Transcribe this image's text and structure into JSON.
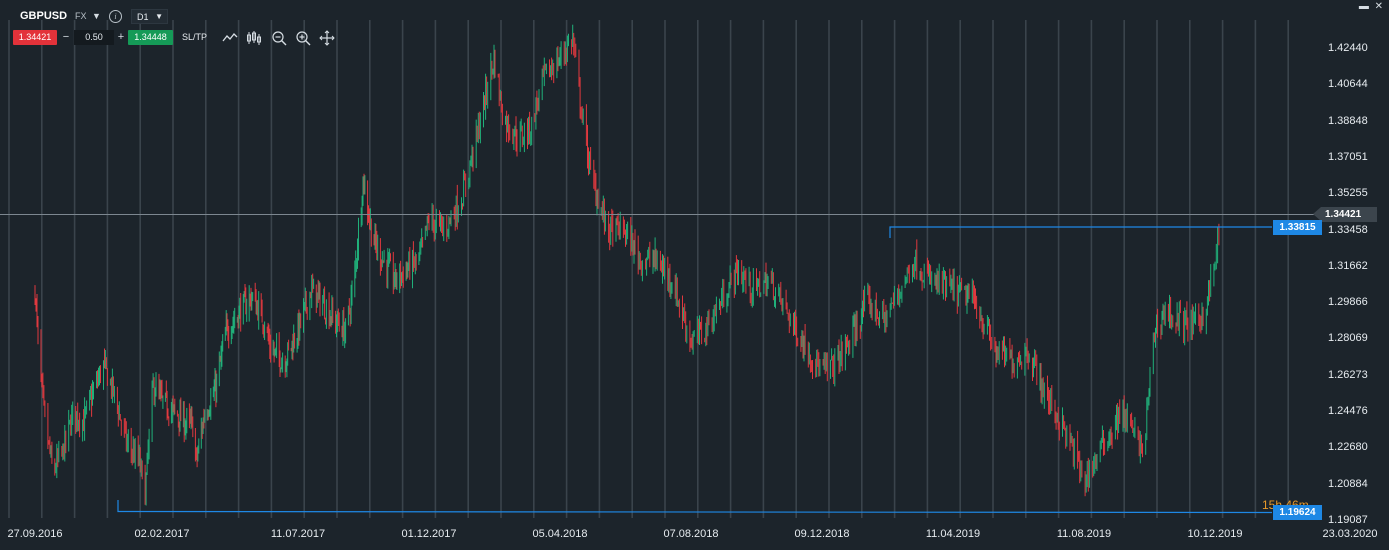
{
  "toolbar": {
    "symbol": "GBPUSD",
    "market": "FX",
    "timeframe": "D1",
    "sell_price": "1.34421",
    "lot_size": "0.50",
    "buy_price": "1.34448",
    "sltp_label": "SL/TP",
    "minus_label": "−",
    "plus_label": "+",
    "icons": [
      "line-chart-icon",
      "candles-icon",
      "zoom-out-icon",
      "zoom-in-icon",
      "crosshair-icon"
    ]
  },
  "window": {
    "icons": [
      "maximize-icon",
      "close-icon"
    ]
  },
  "colors": {
    "background": "#1c242b",
    "grid": "#3a444c",
    "up_candle": "#20b07a",
    "down_candle": "#e0393f",
    "level_line": "#1e88e5",
    "current_line": "#7d8790",
    "countdown": "#e89a2b"
  },
  "chart_data": {
    "type": "candlestick",
    "symbol": "GBPUSD",
    "timeframe": "D1",
    "x_tick_labels": [
      "27.09.2016",
      "02.02.2017",
      "11.07.2017",
      "01.12.2017",
      "05.04.2018",
      "07.08.2018",
      "09.12.2018",
      "11.04.2019",
      "11.08.2019",
      "10.12.2019",
      "23.03.2020"
    ],
    "y_tick_labels": [
      "1.42440",
      "1.40644",
      "1.38848",
      "1.37051",
      "1.35255",
      "1.33458",
      "1.31662",
      "1.29866",
      "1.28069",
      "1.26273",
      "1.24476",
      "1.22680",
      "1.20884",
      "1.19087"
    ],
    "y_range": [
      1.1895,
      1.4335
    ],
    "grid": "vertical",
    "current_price": "1.34421",
    "levels": [
      "1.33815",
      "1.19624"
    ],
    "countdown": "15h 46m",
    "price_path": [
      [
        "27.09.2016",
        1.305
      ],
      [
        "01.10.2016",
        1.27
      ],
      [
        "07.10.2016",
        1.24
      ],
      [
        "15.10.2016",
        1.215
      ],
      [
        "25.10.2016",
        1.225
      ],
      [
        "05.11.2016",
        1.245
      ],
      [
        "15.11.2016",
        1.24
      ],
      [
        "25.11.2016",
        1.255
      ],
      [
        "05.12.2016",
        1.268
      ],
      [
        "15.12.2016",
        1.255
      ],
      [
        "28.12.2016",
        1.23
      ],
      [
        "10.01.2017",
        1.22
      ],
      [
        "16.01.2017",
        1.205
      ],
      [
        "24.01.2017",
        1.258
      ],
      [
        "02.02.2017",
        1.25
      ],
      [
        "15.02.2017",
        1.245
      ],
      [
        "28.02.2017",
        1.24
      ],
      [
        "10.03.2017",
        1.238
      ],
      [
        "14.03.2017",
        1.22
      ],
      [
        "24.03.2017",
        1.245
      ],
      [
        "05.04.2017",
        1.255
      ],
      [
        "18.04.2017",
        1.285
      ],
      [
        "05.05.2017",
        1.295
      ],
      [
        "18.05.2017",
        1.302
      ],
      [
        "01.06.2017",
        1.29
      ],
      [
        "10.06.2017",
        1.275
      ],
      [
        "25.06.2017",
        1.27
      ],
      [
        "11.07.2017",
        1.285
      ],
      [
        "25.07.2017",
        1.305
      ],
      [
        "05.08.2017",
        1.3
      ],
      [
        "20.08.2017",
        1.29
      ],
      [
        "01.09.2017",
        1.285
      ],
      [
        "10.09.2017",
        1.308
      ],
      [
        "20.09.2017",
        1.36
      ],
      [
        "01.10.2017",
        1.33
      ],
      [
        "12.10.2017",
        1.32
      ],
      [
        "25.10.2017",
        1.31
      ],
      [
        "05.11.2017",
        1.315
      ],
      [
        "20.11.2017",
        1.32
      ],
      [
        "01.12.2017",
        1.34
      ],
      [
        "15.12.2017",
        1.335
      ],
      [
        "01.01.2018",
        1.35
      ],
      [
        "15.01.2018",
        1.38
      ],
      [
        "01.02.2018",
        1.42
      ],
      [
        "10.02.2018",
        1.39
      ],
      [
        "25.02.2018",
        1.38
      ],
      [
        "08.03.2018",
        1.385
      ],
      [
        "20.03.2018",
        1.41
      ],
      [
        "05.04.2018",
        1.42
      ],
      [
        "17.04.2018",
        1.43
      ],
      [
        "25.04.2018",
        1.395
      ],
      [
        "05.05.2018",
        1.36
      ],
      [
        "20.05.2018",
        1.335
      ],
      [
        "05.06.2018",
        1.335
      ],
      [
        "20.06.2018",
        1.32
      ],
      [
        "05.07.2018",
        1.32
      ],
      [
        "20.07.2018",
        1.31
      ],
      [
        "07.08.2018",
        1.28
      ],
      [
        "20.08.2018",
        1.285
      ],
      [
        "05.09.2018",
        1.3
      ],
      [
        "20.09.2018",
        1.315
      ],
      [
        "05.10.2018",
        1.305
      ],
      [
        "20.10.2018",
        1.31
      ],
      [
        "05.11.2018",
        1.295
      ],
      [
        "20.11.2018",
        1.28
      ],
      [
        "09.12.2018",
        1.265
      ],
      [
        "20.12.2018",
        1.268
      ],
      [
        "05.01.2019",
        1.28
      ],
      [
        "20.01.2019",
        1.3
      ],
      [
        "05.02.2019",
        1.29
      ],
      [
        "20.02.2019",
        1.305
      ],
      [
        "05.03.2019",
        1.32
      ],
      [
        "20.03.2019",
        1.31
      ],
      [
        "11.04.2019",
        1.305
      ],
      [
        "01.05.2019",
        1.3
      ],
      [
        "20.05.2019",
        1.275
      ],
      [
        "05.06.2019",
        1.27
      ],
      [
        "20.06.2019",
        1.275
      ],
      [
        "05.07.2019",
        1.255
      ],
      [
        "20.07.2019",
        1.24
      ],
      [
        "05.08.2019",
        1.22
      ],
      [
        "11.08.2019",
        1.21
      ],
      [
        "25.08.2019",
        1.225
      ],
      [
        "05.09.2019",
        1.235
      ],
      [
        "15.09.2019",
        1.245
      ],
      [
        "25.09.2019",
        1.235
      ],
      [
        "05.10.2019",
        1.225
      ],
      [
        "15.10.2019",
        1.285
      ],
      [
        "25.10.2019",
        1.295
      ],
      [
        "05.11.2019",
        1.29
      ],
      [
        "20.11.2019",
        1.288
      ],
      [
        "01.12.2019",
        1.295
      ],
      [
        "10.12.2019",
        1.318
      ],
      [
        "15.12.2019",
        1.344
      ]
    ]
  }
}
